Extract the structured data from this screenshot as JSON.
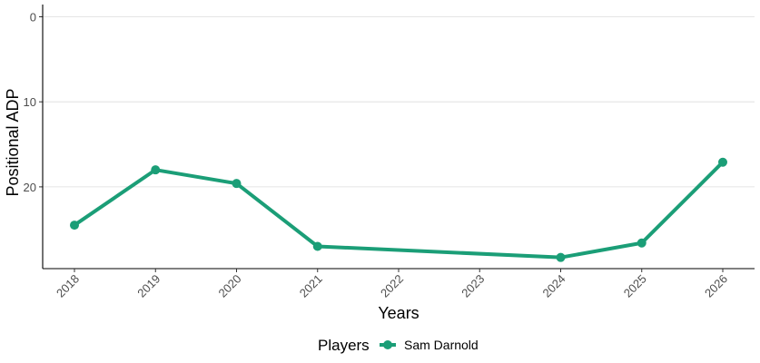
{
  "chart_data": {
    "type": "line",
    "x": [
      "2018",
      "2019",
      "2020",
      "2021",
      "2022",
      "2023",
      "2024",
      "2025",
      "2026"
    ],
    "series": [
      {
        "name": "Sam Darnold",
        "color": "#1b9e77",
        "points": [
          {
            "x": "2018",
            "y": 24.5
          },
          {
            "x": "2019",
            "y": 18.0
          },
          {
            "x": "2020",
            "y": 19.6
          },
          {
            "x": "2021",
            "y": 27.0
          },
          {
            "x": "2024",
            "y": 28.3
          },
          {
            "x": "2025",
            "y": 26.6
          },
          {
            "x": "2026",
            "y": 17.1
          }
        ]
      }
    ],
    "xlabel": "Years",
    "ylabel": "Positional ADP",
    "y_ticks": [
      0,
      10,
      20
    ],
    "ylim": [
      0,
      29.5
    ],
    "y_reversed": true,
    "grid": "horizontal-major",
    "legend": {
      "title": "Players",
      "position": "bottom"
    }
  }
}
